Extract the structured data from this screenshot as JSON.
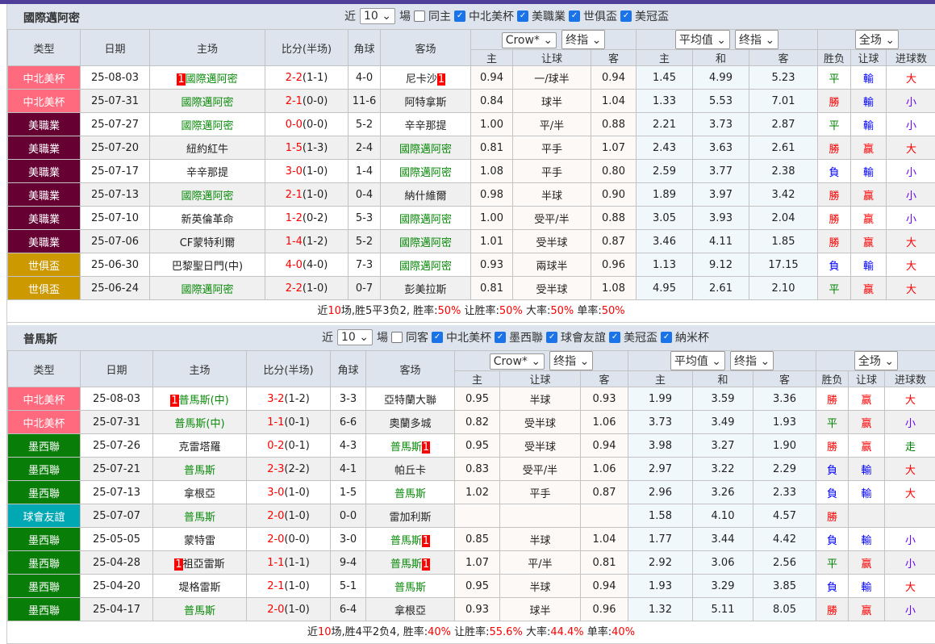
{
  "colors": {
    "topbar": "#4f3f9a",
    "header_bg": "#dde4ee",
    "focus_team": "#0a8a0a",
    "red": "#ff0000",
    "blue": "#0000ff",
    "green": "#008000",
    "small": "#6600ff"
  },
  "type_colors": {
    "中北美杯": "#ff6a7e",
    "美職業": "#660033",
    "世俱盃": "#cc9900",
    "墨西聯": "#087d08",
    "球會友誼": "#00a8b4"
  },
  "result_colors": {
    "勝": "#ff0000",
    "平": "#008000",
    "負": "#0000ff",
    "赢": "#ff0000",
    "輸": "#0000ff",
    "大": "#ff0000",
    "小": "#6600ff",
    "走": "#008000"
  },
  "headers": {
    "type": "类型",
    "date": "日期",
    "home": "主场",
    "score": "比分(半场)",
    "corner": "角球",
    "away": "客场",
    "crow_select": "Crow*",
    "final1_select": "终指",
    "avg_select": "平均值",
    "final2_select": "终指",
    "full_select": "全场",
    "h_home": "主",
    "h_hcap": "让球",
    "h_away": "客",
    "h_home2": "主",
    "h_draw": "和",
    "h_away2": "客",
    "h_wl": "胜负",
    "h_hcap2": "让球",
    "h_goals": "进球数"
  },
  "sections": [
    {
      "team": "國際邁阿密",
      "near": "近",
      "count": "10",
      "unit": "場",
      "same": "同主",
      "same_checked": false,
      "leagues": [
        {
          "label": "中北美杯",
          "checked": true
        },
        {
          "label": "美職業",
          "checked": true
        },
        {
          "label": "世俱盃",
          "checked": true
        },
        {
          "label": "美冠盃",
          "checked": true
        }
      ],
      "rows": [
        {
          "type": "中北美杯",
          "date": "25-08-03",
          "home": "國際邁阿密",
          "home_focus": true,
          "home_card_pre": "1",
          "home_card_post": "",
          "score_ft": "2-2",
          "score_ht": "(1-1)",
          "corner": "4-0",
          "away": "尼卡沙",
          "away_focus": false,
          "away_card_pre": "",
          "away_card_post": "1",
          "o_home": "0.94",
          "o_hcap": "一/球半",
          "o_away": "0.94",
          "a_home": "1.45",
          "a_draw": "4.99",
          "a_away": "5.23",
          "wl": "平",
          "hc": "輸",
          "goals": "大"
        },
        {
          "type": "中北美杯",
          "date": "25-07-31",
          "home": "國際邁阿密",
          "home_focus": true,
          "home_card_pre": "",
          "home_card_post": "",
          "score_ft": "2-1",
          "score_ht": "(0-0)",
          "corner": "11-6",
          "away": "阿特拿斯",
          "away_focus": false,
          "away_card_pre": "",
          "away_card_post": "",
          "o_home": "0.84",
          "o_hcap": "球半",
          "o_away": "1.04",
          "a_home": "1.33",
          "a_draw": "5.53",
          "a_away": "7.01",
          "wl": "勝",
          "hc": "輸",
          "goals": "小"
        },
        {
          "type": "美職業",
          "date": "25-07-27",
          "home": "國際邁阿密",
          "home_focus": true,
          "home_card_pre": "",
          "home_card_post": "",
          "score_ft": "0-0",
          "score_ht": "(0-0)",
          "corner": "5-2",
          "away": "辛辛那提",
          "away_focus": false,
          "away_card_pre": "",
          "away_card_post": "",
          "o_home": "1.00",
          "o_hcap": "平/半",
          "o_away": "0.88",
          "a_home": "2.21",
          "a_draw": "3.73",
          "a_away": "2.87",
          "wl": "平",
          "hc": "輸",
          "goals": "小"
        },
        {
          "type": "美職業",
          "date": "25-07-20",
          "home": "紐約紅牛",
          "home_focus": false,
          "home_card_pre": "",
          "home_card_post": "",
          "score_ft": "1-5",
          "score_ht": "(1-3)",
          "corner": "2-4",
          "away": "國際邁阿密",
          "away_focus": true,
          "away_card_pre": "",
          "away_card_post": "",
          "o_home": "0.81",
          "o_hcap": "平手",
          "o_away": "1.07",
          "a_home": "2.43",
          "a_draw": "3.63",
          "a_away": "2.61",
          "wl": "勝",
          "hc": "赢",
          "goals": "大"
        },
        {
          "type": "美職業",
          "date": "25-07-17",
          "home": "辛辛那提",
          "home_focus": false,
          "home_card_pre": "",
          "home_card_post": "",
          "score_ft": "3-0",
          "score_ht": "(1-0)",
          "corner": "1-4",
          "away": "國際邁阿密",
          "away_focus": true,
          "away_card_pre": "",
          "away_card_post": "",
          "o_home": "1.08",
          "o_hcap": "平手",
          "o_away": "0.80",
          "a_home": "2.59",
          "a_draw": "3.77",
          "a_away": "2.38",
          "wl": "負",
          "hc": "輸",
          "goals": "小"
        },
        {
          "type": "美職業",
          "date": "25-07-13",
          "home": "國際邁阿密",
          "home_focus": true,
          "home_card_pre": "",
          "home_card_post": "",
          "score_ft": "2-1",
          "score_ht": "(1-0)",
          "corner": "0-4",
          "away": "納什維爾",
          "away_focus": false,
          "away_card_pre": "",
          "away_card_post": "",
          "o_home": "0.98",
          "o_hcap": "半球",
          "o_away": "0.90",
          "a_home": "1.89",
          "a_draw": "3.97",
          "a_away": "3.42",
          "wl": "勝",
          "hc": "赢",
          "goals": "小"
        },
        {
          "type": "美職業",
          "date": "25-07-10",
          "home": "新英倫革命",
          "home_focus": false,
          "home_card_pre": "",
          "home_card_post": "",
          "score_ft": "1-2",
          "score_ht": "(0-2)",
          "corner": "5-3",
          "away": "國際邁阿密",
          "away_focus": true,
          "away_card_pre": "",
          "away_card_post": "",
          "o_home": "1.00",
          "o_hcap": "受平/半",
          "o_away": "0.88",
          "a_home": "3.05",
          "a_draw": "3.93",
          "a_away": "2.04",
          "wl": "勝",
          "hc": "赢",
          "goals": "小"
        },
        {
          "type": "美職業",
          "date": "25-07-06",
          "home": "CF蒙特利爾",
          "home_focus": false,
          "home_card_pre": "",
          "home_card_post": "",
          "score_ft": "1-4",
          "score_ht": "(1-2)",
          "corner": "5-2",
          "away": "國際邁阿密",
          "away_focus": true,
          "away_card_pre": "",
          "away_card_post": "",
          "o_home": "1.01",
          "o_hcap": "受半球",
          "o_away": "0.87",
          "a_home": "3.46",
          "a_draw": "4.11",
          "a_away": "1.85",
          "wl": "勝",
          "hc": "赢",
          "goals": "大"
        },
        {
          "type": "世俱盃",
          "date": "25-06-30",
          "home": "巴黎聖日門(中)",
          "home_focus": false,
          "home_card_pre": "",
          "home_card_post": "",
          "score_ft": "4-0",
          "score_ht": "(4-0)",
          "corner": "7-3",
          "away": "國際邁阿密",
          "away_focus": true,
          "away_card_pre": "",
          "away_card_post": "",
          "o_home": "0.93",
          "o_hcap": "兩球半",
          "o_away": "0.96",
          "a_home": "1.13",
          "a_draw": "9.12",
          "a_away": "17.15",
          "wl": "負",
          "hc": "輸",
          "goals": "大"
        },
        {
          "type": "世俱盃",
          "date": "25-06-24",
          "home": "國際邁阿密",
          "home_focus": true,
          "home_card_pre": "",
          "home_card_post": "",
          "score_ft": "2-2",
          "score_ht": "(1-0)",
          "corner": "0-7",
          "away": "彭美拉斯",
          "away_focus": false,
          "away_card_pre": "",
          "away_card_post": "",
          "o_home": "0.81",
          "o_hcap": "受半球",
          "o_away": "1.08",
          "a_home": "4.95",
          "a_draw": "2.61",
          "a_away": "2.10",
          "wl": "平",
          "hc": "赢",
          "goals": "大"
        }
      ],
      "summary": {
        "p1": "近",
        "n": "10",
        "p2": "场,胜5平3负2, 胜率:",
        "win": "50%",
        "p3": " 让胜率:",
        "hwin": "50%",
        "p4": " 大率:",
        "big": "50%",
        "p5": " 单率:",
        "odd": "50%"
      }
    },
    {
      "team": "普馬斯",
      "near": "近",
      "count": "10",
      "unit": "場",
      "same": "同客",
      "same_checked": false,
      "leagues": [
        {
          "label": "中北美杯",
          "checked": true
        },
        {
          "label": "墨西聯",
          "checked": true
        },
        {
          "label": "球會友誼",
          "checked": true
        },
        {
          "label": "美冠盃",
          "checked": true
        },
        {
          "label": "納米杯",
          "checked": true
        }
      ],
      "rows": [
        {
          "type": "中北美杯",
          "date": "25-08-03",
          "home": "普馬斯(中)",
          "home_focus": true,
          "home_card_pre": "1",
          "home_card_post": "",
          "score_ft": "3-2",
          "score_ht": "(1-2)",
          "corner": "3-3",
          "away": "亞特蘭大聯",
          "away_focus": false,
          "away_card_pre": "",
          "away_card_post": "",
          "o_home": "0.95",
          "o_hcap": "半球",
          "o_away": "0.93",
          "a_home": "1.99",
          "a_draw": "3.59",
          "a_away": "3.36",
          "wl": "勝",
          "hc": "赢",
          "goals": "大"
        },
        {
          "type": "中北美杯",
          "date": "25-07-31",
          "home": "普馬斯(中)",
          "home_focus": true,
          "home_card_pre": "",
          "home_card_post": "",
          "score_ft": "1-1",
          "score_ht": "(0-1)",
          "corner": "6-6",
          "away": "奧蘭多城",
          "away_focus": false,
          "away_card_pre": "",
          "away_card_post": "",
          "o_home": "0.82",
          "o_hcap": "受半球",
          "o_away": "1.06",
          "a_home": "3.73",
          "a_draw": "3.49",
          "a_away": "1.93",
          "wl": "平",
          "hc": "赢",
          "goals": "小"
        },
        {
          "type": "墨西聯",
          "date": "25-07-26",
          "home": "克雷塔羅",
          "home_focus": false,
          "home_card_pre": "",
          "home_card_post": "",
          "score_ft": "0-2",
          "score_ht": "(0-1)",
          "corner": "4-3",
          "away": "普馬斯",
          "away_focus": true,
          "away_card_pre": "",
          "away_card_post": "1",
          "o_home": "0.95",
          "o_hcap": "受半球",
          "o_away": "0.94",
          "a_home": "3.98",
          "a_draw": "3.27",
          "a_away": "1.90",
          "wl": "勝",
          "hc": "赢",
          "goals": "走"
        },
        {
          "type": "墨西聯",
          "date": "25-07-21",
          "home": "普馬斯",
          "home_focus": true,
          "home_card_pre": "",
          "home_card_post": "",
          "score_ft": "2-3",
          "score_ht": "(2-2)",
          "corner": "4-1",
          "away": "帕丘卡",
          "away_focus": false,
          "away_card_pre": "",
          "away_card_post": "",
          "o_home": "0.83",
          "o_hcap": "受平/半",
          "o_away": "1.06",
          "a_home": "2.97",
          "a_draw": "3.22",
          "a_away": "2.29",
          "wl": "負",
          "hc": "輸",
          "goals": "大"
        },
        {
          "type": "墨西聯",
          "date": "25-07-13",
          "home": "拿根亞",
          "home_focus": false,
          "home_card_pre": "",
          "home_card_post": "",
          "score_ft": "3-0",
          "score_ht": "(1-0)",
          "corner": "1-5",
          "away": "普馬斯",
          "away_focus": true,
          "away_card_pre": "",
          "away_card_post": "",
          "o_home": "1.02",
          "o_hcap": "平手",
          "o_away": "0.87",
          "a_home": "2.96",
          "a_draw": "3.26",
          "a_away": "2.33",
          "wl": "負",
          "hc": "輸",
          "goals": "大"
        },
        {
          "type": "球會友誼",
          "date": "25-07-07",
          "home": "普馬斯",
          "home_focus": true,
          "home_card_pre": "",
          "home_card_post": "",
          "score_ft": "2-0",
          "score_ht": "(1-0)",
          "corner": "0-0",
          "away": "雷加利斯",
          "away_focus": false,
          "away_card_pre": "",
          "away_card_post": "",
          "o_home": "",
          "o_hcap": "",
          "o_away": "",
          "a_home": "1.58",
          "a_draw": "4.10",
          "a_away": "4.57",
          "wl": "勝",
          "hc": "",
          "goals": ""
        },
        {
          "type": "墨西聯",
          "date": "25-05-05",
          "home": "蒙特雷",
          "home_focus": false,
          "home_card_pre": "",
          "home_card_post": "",
          "score_ft": "2-0",
          "score_ht": "(0-0)",
          "corner": "3-0",
          "away": "普馬斯",
          "away_focus": true,
          "away_card_pre": "",
          "away_card_post": "1",
          "o_home": "0.85",
          "o_hcap": "半球",
          "o_away": "1.04",
          "a_home": "1.77",
          "a_draw": "3.44",
          "a_away": "4.42",
          "wl": "負",
          "hc": "輸",
          "goals": "小"
        },
        {
          "type": "墨西聯",
          "date": "25-04-28",
          "home": "祖亞雷斯",
          "home_focus": false,
          "home_card_pre": "1",
          "home_card_post": "",
          "score_ft": "1-1",
          "score_ht": "(1-1)",
          "corner": "9-4",
          "away": "普馬斯",
          "away_focus": true,
          "away_card_pre": "",
          "away_card_post": "1",
          "o_home": "1.07",
          "o_hcap": "平/半",
          "o_away": "0.81",
          "a_home": "2.92",
          "a_draw": "3.06",
          "a_away": "2.56",
          "wl": "平",
          "hc": "赢",
          "goals": "小"
        },
        {
          "type": "墨西聯",
          "date": "25-04-20",
          "home": "堤格雷斯",
          "home_focus": false,
          "home_card_pre": "",
          "home_card_post": "",
          "score_ft": "2-1",
          "score_ht": "(1-0)",
          "corner": "5-1",
          "away": "普馬斯",
          "away_focus": true,
          "away_card_pre": "",
          "away_card_post": "",
          "o_home": "0.95",
          "o_hcap": "半球",
          "o_away": "0.94",
          "a_home": "1.93",
          "a_draw": "3.29",
          "a_away": "3.85",
          "wl": "負",
          "hc": "輸",
          "goals": "大"
        },
        {
          "type": "墨西聯",
          "date": "25-04-17",
          "home": "普馬斯",
          "home_focus": true,
          "home_card_pre": "",
          "home_card_post": "",
          "score_ft": "2-0",
          "score_ht": "(1-0)",
          "corner": "6-4",
          "away": "拿根亞",
          "away_focus": false,
          "away_card_pre": "",
          "away_card_post": "",
          "o_home": "0.93",
          "o_hcap": "球半",
          "o_away": "0.96",
          "a_home": "1.32",
          "a_draw": "5.11",
          "a_away": "8.05",
          "wl": "勝",
          "hc": "赢",
          "goals": "小"
        }
      ],
      "summary": {
        "p1": "近",
        "n": "10",
        "p2": "场,胜4平2负4, 胜率:",
        "win": "40%",
        "p3": " 让胜率:",
        "hwin": "55.6%",
        "p4": " 大率:",
        "big": "44.4%",
        "p5": " 单率:",
        "odd": "40%"
      }
    }
  ]
}
